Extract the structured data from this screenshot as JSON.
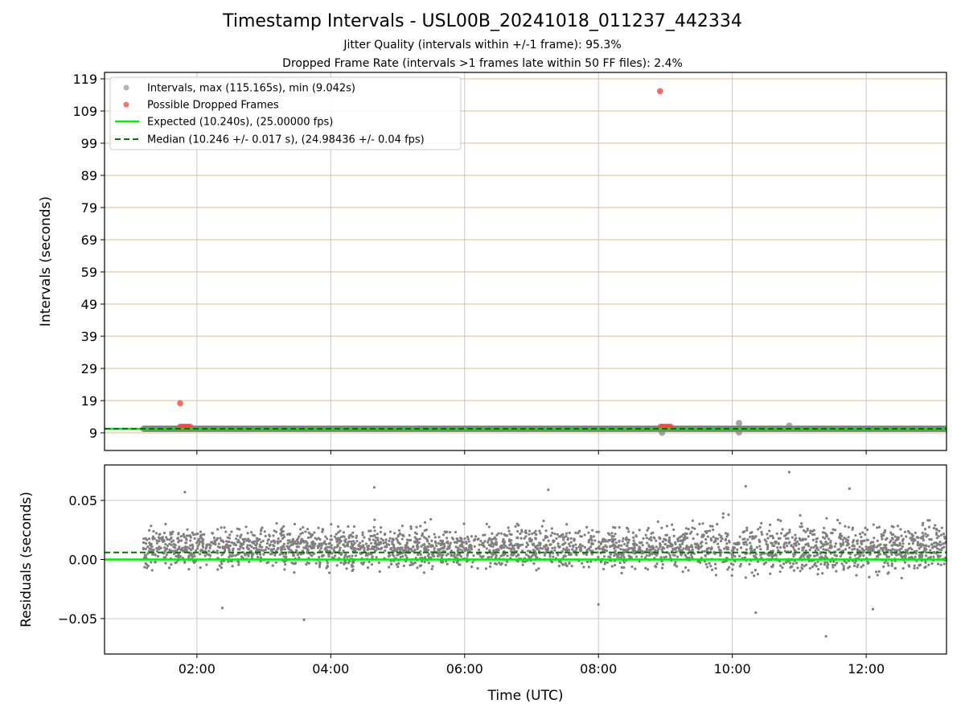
{
  "figure": {
    "title": "Timestamp Intervals - USL00B_20241018_011237_442334",
    "subtitle_1": "Jitter Quality (intervals within +/-1 frame): 95.3%",
    "subtitle_2": "Dropped Frame Rate (intervals >1 frames late within 50 FF files): 2.4%"
  },
  "colors": {
    "intervals": "#808080",
    "dropped": "#ff4040",
    "expected": "#00ee00",
    "median": "#007700",
    "hgrid": "#d8c08a",
    "vgrid": "#c8c8c8"
  },
  "chart_data": [
    {
      "type": "scatter",
      "title": "",
      "xlabel": "",
      "ylabel": "Intervals (seconds)",
      "x_ticks": [
        "02:00",
        "04:00",
        "06:00",
        "08:00",
        "10:00",
        "12:00"
      ],
      "x_tick_hours": [
        2,
        4,
        6,
        8,
        10,
        12
      ],
      "xlim_hours": [
        0.62,
        13.2
      ],
      "ylim": [
        3.5,
        121
      ],
      "y_ticks": [
        9,
        19,
        29,
        39,
        49,
        59,
        69,
        79,
        89,
        99,
        109,
        119
      ],
      "grid": "horizontal at y ticks, vertical at x ticks",
      "legend_position": "top-left",
      "legend": [
        "Intervals, max (115.165s), min (9.042s)",
        "Possible Dropped Frames",
        "Expected (10.240s), (25.00000 fps)",
        "Median (10.246 +/- 0.017 s), (24.98436 +/- 0.04 fps)"
      ],
      "series": [
        {
          "name": "Intervals, max (115.165s), min (9.042s)",
          "style": "gray dots forming a dense band",
          "band_y_range": [
            10.19,
            10.3
          ],
          "x_range_hours": [
            1.2,
            13.2
          ],
          "points": [
            {
              "x": 10.1,
              "y": 12.0
            },
            {
              "x": 10.1,
              "y": 9.1
            },
            {
              "x": 10.85,
              "y": 11.2
            },
            {
              "x": 8.95,
              "y": 9.04
            }
          ]
        },
        {
          "name": "Possible Dropped Frames",
          "points": [
            {
              "x": 1.75,
              "y": 18.2
            },
            {
              "x": 8.92,
              "y": 115.165
            },
            {
              "x": 1.75,
              "y": 10.9
            },
            {
              "x": 1.78,
              "y": 10.9
            },
            {
              "x": 1.81,
              "y": 10.9
            },
            {
              "x": 1.84,
              "y": 10.9
            },
            {
              "x": 1.87,
              "y": 10.9
            },
            {
              "x": 1.9,
              "y": 10.9
            },
            {
              "x": 8.93,
              "y": 10.9
            },
            {
              "x": 8.96,
              "y": 10.9
            },
            {
              "x": 8.99,
              "y": 10.9
            },
            {
              "x": 9.02,
              "y": 10.9
            },
            {
              "x": 9.05,
              "y": 10.9
            },
            {
              "x": 9.08,
              "y": 10.9
            }
          ]
        },
        {
          "name": "Expected (10.240s), (25.00000 fps)",
          "type": "hline",
          "y": 10.24
        },
        {
          "name": "Median (10.246 +/- 0.017 s), (24.98436 +/- 0.04 fps)",
          "type": "hline",
          "y": 10.246
        }
      ]
    },
    {
      "type": "scatter",
      "title": "",
      "xlabel": "Time (UTC)",
      "ylabel": "Residuals (seconds)",
      "x_ticks": [
        "02:00",
        "04:00",
        "06:00",
        "08:00",
        "10:00",
        "12:00"
      ],
      "x_tick_hours": [
        2,
        4,
        6,
        8,
        10,
        12
      ],
      "xlim_hours": [
        0.62,
        13.2
      ],
      "ylim": [
        -0.08,
        0.08
      ],
      "y_ticks": [
        -0.05,
        0.0,
        0.05
      ],
      "y_tick_labels": [
        "−0.05",
        "0.00",
        "0.05"
      ],
      "grid": "horizontal at y ticks, vertical at x ticks",
      "series": [
        {
          "name": "Residuals",
          "style": "gray dots, roughly uniform spread",
          "x_range_hours": [
            1.2,
            13.2
          ],
          "center": 0.01,
          "spread": [
            -0.03,
            0.05
          ],
          "outliers": [
            {
              "x": 1.82,
              "y": 0.057
            },
            {
              "x": 2.38,
              "y": -0.041
            },
            {
              "x": 3.6,
              "y": -0.051
            },
            {
              "x": 4.65,
              "y": 0.061
            },
            {
              "x": 7.25,
              "y": 0.059
            },
            {
              "x": 8.0,
              "y": -0.038
            },
            {
              "x": 10.2,
              "y": 0.062
            },
            {
              "x": 10.35,
              "y": -0.045
            },
            {
              "x": 10.85,
              "y": 0.074
            },
            {
              "x": 11.4,
              "y": -0.065
            },
            {
              "x": 11.75,
              "y": 0.06
            },
            {
              "x": 12.1,
              "y": -0.042
            }
          ]
        },
        {
          "name": "Expected",
          "type": "hline",
          "y": 0.0
        },
        {
          "name": "Median",
          "type": "hline",
          "y": 0.006
        }
      ]
    }
  ]
}
